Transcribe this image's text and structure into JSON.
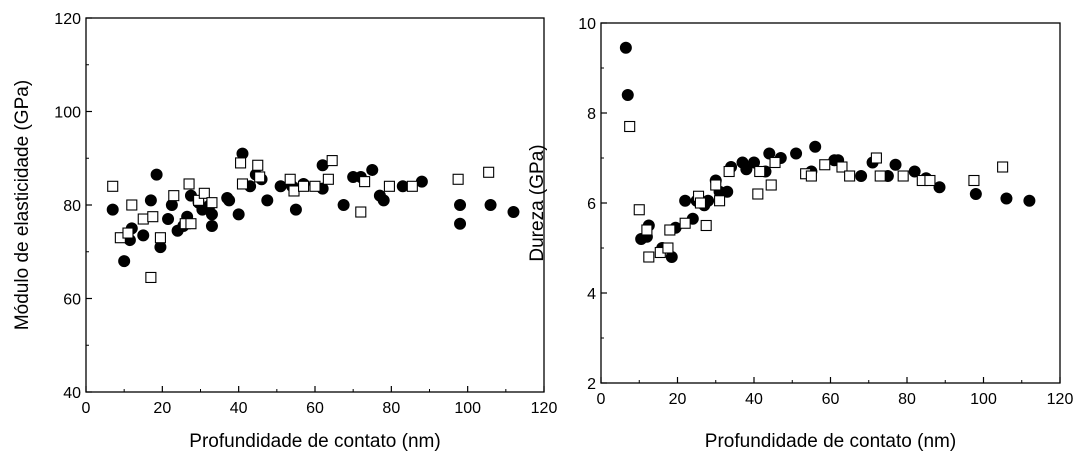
{
  "chart_data": [
    {
      "type": "scatter",
      "title": "",
      "xlabel": "Profundidade de contato (nm)",
      "ylabel": "Módulo de elasticidade (GPa)",
      "xlim": [
        0,
        120
      ],
      "ylim": [
        40,
        120
      ],
      "xticks": [
        0,
        20,
        40,
        60,
        80,
        100,
        120
      ],
      "yticks": [
        40,
        60,
        80,
        100,
        120
      ],
      "grid": false,
      "legend": "none",
      "series": [
        {
          "marker": "filled-circle",
          "color": "#000000",
          "points": [
            [
              7,
              79
            ],
            [
              10,
              68
            ],
            [
              11.5,
              72.5
            ],
            [
              12,
              75
            ],
            [
              15,
              73.5
            ],
            [
              17,
              81
            ],
            [
              18.5,
              86.5
            ],
            [
              19.5,
              71
            ],
            [
              21.5,
              77
            ],
            [
              22.5,
              80
            ],
            [
              24,
              74.5
            ],
            [
              25.5,
              75.5
            ],
            [
              26.5,
              77.5
            ],
            [
              27.5,
              82
            ],
            [
              29.5,
              80.5
            ],
            [
              30.5,
              79
            ],
            [
              32.5,
              80
            ],
            [
              33,
              75.5
            ],
            [
              33,
              78
            ],
            [
              37,
              81.5
            ],
            [
              37.5,
              81
            ],
            [
              40,
              78
            ],
            [
              41,
              91
            ],
            [
              43,
              84
            ],
            [
              44.5,
              86.5
            ],
            [
              46,
              85.5
            ],
            [
              47.5,
              81
            ],
            [
              51,
              84
            ],
            [
              54,
              84
            ],
            [
              55,
              79
            ],
            [
              57,
              84.5
            ],
            [
              62,
              88.5
            ],
            [
              62,
              83.5
            ],
            [
              67.5,
              80
            ],
            [
              70,
              86
            ],
            [
              72,
              86
            ],
            [
              75,
              87.5
            ],
            [
              77,
              82
            ],
            [
              78,
              81
            ],
            [
              83,
              84
            ],
            [
              88,
              85
            ],
            [
              98,
              76
            ],
            [
              98,
              80
            ],
            [
              106,
              80
            ],
            [
              112,
              78.5
            ]
          ]
        },
        {
          "marker": "open-square",
          "color": "#000000",
          "points": [
            [
              7,
              84
            ],
            [
              9,
              73
            ],
            [
              11,
              74
            ],
            [
              12,
              80
            ],
            [
              15,
              77
            ],
            [
              17,
              64.5
            ],
            [
              17.5,
              77.5
            ],
            [
              19.5,
              73
            ],
            [
              23,
              82
            ],
            [
              26,
              76
            ],
            [
              27,
              84.5
            ],
            [
              27.5,
              76
            ],
            [
              29.5,
              81
            ],
            [
              31,
              82.5
            ],
            [
              33,
              80.5
            ],
            [
              40.5,
              89
            ],
            [
              41,
              84.5
            ],
            [
              45,
              88.5
            ],
            [
              45.5,
              86
            ],
            [
              53.5,
              85.5
            ],
            [
              54.5,
              83
            ],
            [
              57,
              84
            ],
            [
              60,
              84
            ],
            [
              63.5,
              85.5
            ],
            [
              64.5,
              89.5
            ],
            [
              72,
              78.5
            ],
            [
              73,
              85
            ],
            [
              79.5,
              84
            ],
            [
              85.5,
              84
            ],
            [
              97.5,
              85.5
            ],
            [
              105.5,
              87
            ]
          ]
        }
      ]
    },
    {
      "type": "scatter",
      "title": "",
      "xlabel": "Profundidade de contato (nm)",
      "ylabel": "Dureza (GPa)",
      "xlim": [
        0,
        120
      ],
      "ylim": [
        2,
        10
      ],
      "xticks": [
        0,
        20,
        40,
        60,
        80,
        100,
        120
      ],
      "yticks": [
        2,
        4,
        6,
        8,
        10
      ],
      "grid": false,
      "legend": "none",
      "series": [
        {
          "marker": "filled-circle",
          "color": "#000000",
          "points": [
            [
              6.5,
              9.45
            ],
            [
              7,
              8.4
            ],
            [
              10.5,
              5.2
            ],
            [
              12,
              5.25
            ],
            [
              12.5,
              5.5
            ],
            [
              16,
              5.0
            ],
            [
              18.5,
              4.8
            ],
            [
              19.5,
              5.45
            ],
            [
              22,
              6.05
            ],
            [
              24,
              5.65
            ],
            [
              25,
              6.05
            ],
            [
              27,
              5.95
            ],
            [
              28,
              6.05
            ],
            [
              30,
              6.5
            ],
            [
              31,
              6.25
            ],
            [
              33,
              6.25
            ],
            [
              34,
              6.8
            ],
            [
              37,
              6.9
            ],
            [
              38,
              6.75
            ],
            [
              40,
              6.9
            ],
            [
              43,
              6.7
            ],
            [
              44,
              7.1
            ],
            [
              47,
              7.0
            ],
            [
              51,
              7.1
            ],
            [
              55,
              6.7
            ],
            [
              56,
              7.25
            ],
            [
              61,
              6.95
            ],
            [
              62,
              6.95
            ],
            [
              68,
              6.6
            ],
            [
              71,
              6.9
            ],
            [
              75,
              6.6
            ],
            [
              77,
              6.85
            ],
            [
              82,
              6.7
            ],
            [
              85,
              6.55
            ],
            [
              88.5,
              6.35
            ],
            [
              98,
              6.2
            ],
            [
              106,
              6.1
            ],
            [
              112,
              6.05
            ]
          ]
        },
        {
          "marker": "open-square",
          "color": "#000000",
          "points": [
            [
              7.5,
              7.7
            ],
            [
              10,
              5.85
            ],
            [
              12,
              5.4
            ],
            [
              12.5,
              4.8
            ],
            [
              15.5,
              4.9
            ],
            [
              17.5,
              5.0
            ],
            [
              18,
              5.4
            ],
            [
              22,
              5.55
            ],
            [
              25.5,
              6.15
            ],
            [
              26,
              6.0
            ],
            [
              27.5,
              5.5
            ],
            [
              30,
              6.4
            ],
            [
              31,
              6.05
            ],
            [
              33.5,
              6.7
            ],
            [
              41,
              6.2
            ],
            [
              41.5,
              6.7
            ],
            [
              44.5,
              6.4
            ],
            [
              45.5,
              6.9
            ],
            [
              53.5,
              6.65
            ],
            [
              55,
              6.6
            ],
            [
              58.5,
              6.85
            ],
            [
              63,
              6.8
            ],
            [
              65,
              6.6
            ],
            [
              72,
              7.0
            ],
            [
              73,
              6.6
            ],
            [
              79,
              6.6
            ],
            [
              84,
              6.5
            ],
            [
              86,
              6.5
            ],
            [
              97.5,
              6.5
            ],
            [
              105,
              6.8
            ]
          ]
        }
      ]
    }
  ]
}
